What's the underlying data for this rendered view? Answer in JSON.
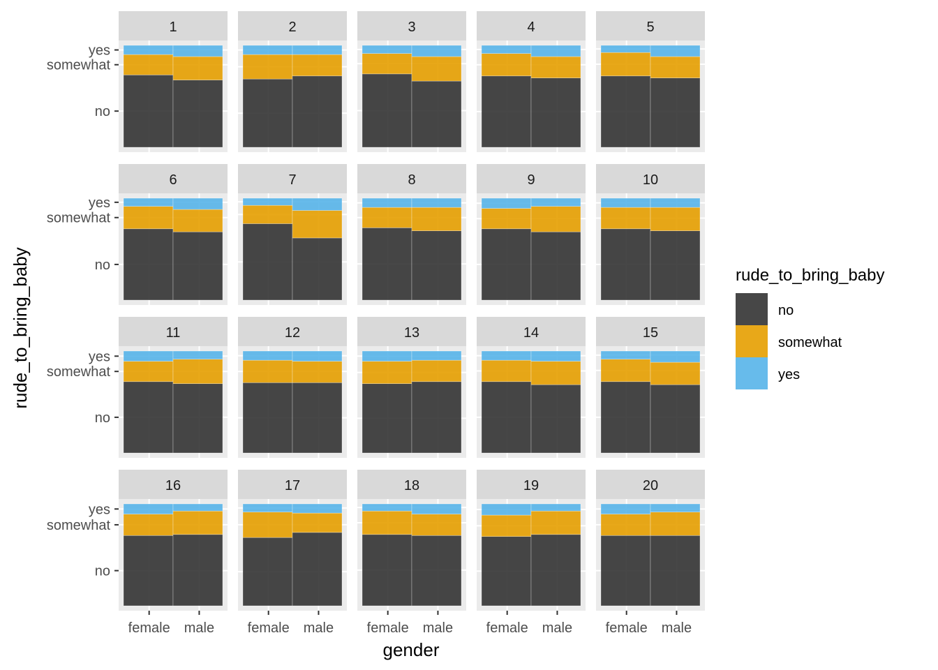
{
  "chart_data": {
    "type": "bar",
    "subtype": "stacked-mosaic-facets",
    "xlabel": "gender",
    "ylabel": "rude_to_bring_baby",
    "categories": [
      "female",
      "male"
    ],
    "y_tick_labels": [
      "no",
      "somewhat",
      "yes"
    ],
    "legend": {
      "title": "rude_to_bring_baby",
      "position": "right",
      "entries": [
        {
          "label": "no",
          "color": "#333333"
        },
        {
          "label": "somewhat",
          "color": "#E69F00"
        },
        {
          "label": "yes",
          "color": "#56B4E9"
        }
      ]
    },
    "grid": true,
    "panel_background": "#EBEBEB",
    "strip_background": "#D9D9D9",
    "facets": [
      {
        "label": "1",
        "female": {
          "no": 0.71,
          "somewhat": 0.2,
          "yes": 0.09
        },
        "male": {
          "no": 0.66,
          "somewhat": 0.23,
          "yes": 0.11
        }
      },
      {
        "label": "2",
        "female": {
          "no": 0.67,
          "somewhat": 0.24,
          "yes": 0.09
        },
        "male": {
          "no": 0.7,
          "somewhat": 0.21,
          "yes": 0.09
        }
      },
      {
        "label": "3",
        "female": {
          "no": 0.72,
          "somewhat": 0.2,
          "yes": 0.08
        },
        "male": {
          "no": 0.65,
          "somewhat": 0.24,
          "yes": 0.11
        }
      },
      {
        "label": "4",
        "female": {
          "no": 0.7,
          "somewhat": 0.22,
          "yes": 0.08
        },
        "male": {
          "no": 0.68,
          "somewhat": 0.21,
          "yes": 0.11
        }
      },
      {
        "label": "5",
        "female": {
          "no": 0.7,
          "somewhat": 0.23,
          "yes": 0.07
        },
        "male": {
          "no": 0.68,
          "somewhat": 0.21,
          "yes": 0.11
        }
      },
      {
        "label": "6",
        "female": {
          "no": 0.7,
          "somewhat": 0.22,
          "yes": 0.08
        },
        "male": {
          "no": 0.67,
          "somewhat": 0.22,
          "yes": 0.11
        }
      },
      {
        "label": "7",
        "female": {
          "no": 0.75,
          "somewhat": 0.18,
          "yes": 0.07
        },
        "male": {
          "no": 0.61,
          "somewhat": 0.27,
          "yes": 0.12
        }
      },
      {
        "label": "8",
        "female": {
          "no": 0.71,
          "somewhat": 0.2,
          "yes": 0.09
        },
        "male": {
          "no": 0.68,
          "somewhat": 0.23,
          "yes": 0.09
        }
      },
      {
        "label": "9",
        "female": {
          "no": 0.7,
          "somewhat": 0.2,
          "yes": 0.1
        },
        "male": {
          "no": 0.67,
          "somewhat": 0.25,
          "yes": 0.08
        }
      },
      {
        "label": "10",
        "female": {
          "no": 0.7,
          "somewhat": 0.21,
          "yes": 0.09
        },
        "male": {
          "no": 0.68,
          "somewhat": 0.23,
          "yes": 0.09
        }
      },
      {
        "label": "11",
        "female": {
          "no": 0.7,
          "somewhat": 0.2,
          "yes": 0.1
        },
        "male": {
          "no": 0.68,
          "somewhat": 0.24,
          "yes": 0.08
        }
      },
      {
        "label": "12",
        "female": {
          "no": 0.69,
          "somewhat": 0.22,
          "yes": 0.09
        },
        "male": {
          "no": 0.69,
          "somewhat": 0.21,
          "yes": 0.1
        }
      },
      {
        "label": "13",
        "female": {
          "no": 0.68,
          "somewhat": 0.22,
          "yes": 0.1
        },
        "male": {
          "no": 0.7,
          "somewhat": 0.21,
          "yes": 0.09
        }
      },
      {
        "label": "14",
        "female": {
          "no": 0.7,
          "somewhat": 0.21,
          "yes": 0.09
        },
        "male": {
          "no": 0.67,
          "somewhat": 0.23,
          "yes": 0.1
        }
      },
      {
        "label": "15",
        "female": {
          "no": 0.7,
          "somewhat": 0.22,
          "yes": 0.08
        },
        "male": {
          "no": 0.67,
          "somewhat": 0.22,
          "yes": 0.11
        }
      },
      {
        "label": "16",
        "female": {
          "no": 0.69,
          "somewhat": 0.21,
          "yes": 0.1
        },
        "male": {
          "no": 0.7,
          "somewhat": 0.23,
          "yes": 0.07
        }
      },
      {
        "label": "17",
        "female": {
          "no": 0.67,
          "somewhat": 0.25,
          "yes": 0.08
        },
        "male": {
          "no": 0.72,
          "somewhat": 0.19,
          "yes": 0.09
        }
      },
      {
        "label": "18",
        "female": {
          "no": 0.7,
          "somewhat": 0.23,
          "yes": 0.07
        },
        "male": {
          "no": 0.69,
          "somewhat": 0.21,
          "yes": 0.1
        }
      },
      {
        "label": "19",
        "female": {
          "no": 0.68,
          "somewhat": 0.21,
          "yes": 0.11
        },
        "male": {
          "no": 0.7,
          "somewhat": 0.23,
          "yes": 0.07
        }
      },
      {
        "label": "20",
        "female": {
          "no": 0.69,
          "somewhat": 0.21,
          "yes": 0.1
        },
        "male": {
          "no": 0.69,
          "somewhat": 0.23,
          "yes": 0.08
        }
      }
    ]
  }
}
